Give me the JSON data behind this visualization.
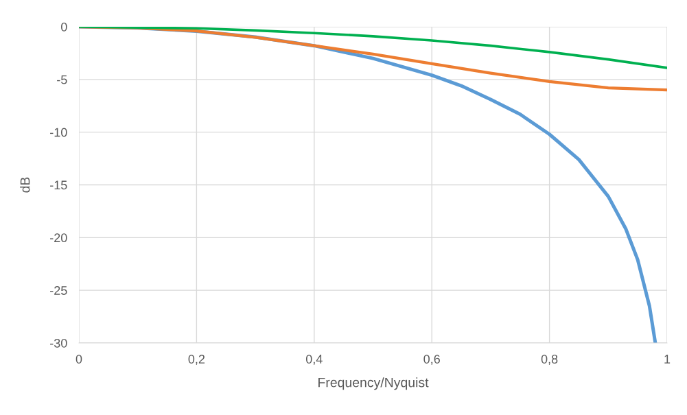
{
  "chart_data": {
    "type": "line",
    "xlabel": "Frequency/Nyquist",
    "ylabel": "dB",
    "xlim": [
      0,
      1
    ],
    "ylim": [
      -30,
      0
    ],
    "xticks": [
      0,
      {
        "value": 0.2,
        "label": "0,2"
      },
      {
        "value": 0.4,
        "label": "0,4"
      },
      {
        "value": 0.6,
        "label": "0,6"
      },
      {
        "value": 0.8,
        "label": "0,8"
      },
      1
    ],
    "yticks": [
      0,
      -5,
      -10,
      -15,
      -20,
      -25,
      -30
    ],
    "grid": true,
    "marker": "none",
    "line_style": "solid",
    "series": [
      {
        "color": "#5b9bd5",
        "x": [
          0,
          0.1,
          0.2,
          0.3,
          0.4,
          0.5,
          0.6,
          0.65,
          0.7,
          0.75,
          0.8,
          0.85,
          0.9,
          0.93,
          0.95,
          0.97,
          0.98
        ],
        "values": [
          0,
          -0.11,
          -0.43,
          -0.98,
          -1.8,
          -3.0,
          -4.6,
          -5.6,
          -6.9,
          -8.3,
          -10.2,
          -12.6,
          -16.1,
          -19.2,
          -22.1,
          -26.5,
          -30
        ]
      },
      {
        "color": "#ed7d31",
        "x": [
          0,
          0.1,
          0.2,
          0.3,
          0.4,
          0.5,
          0.6,
          0.7,
          0.8,
          0.9,
          1.0
        ],
        "values": [
          0,
          -0.1,
          -0.4,
          -1.0,
          -1.8,
          -2.6,
          -3.5,
          -4.4,
          -5.2,
          -5.8,
          -6.0
        ]
      },
      {
        "color": "#00b050",
        "x": [
          0,
          0.2,
          0.3,
          0.4,
          0.5,
          0.6,
          0.7,
          0.8,
          0.9,
          1.0
        ],
        "values": [
          0,
          -0.15,
          -0.35,
          -0.6,
          -0.9,
          -1.3,
          -1.8,
          -2.4,
          -3.1,
          -3.9
        ]
      }
    ]
  }
}
